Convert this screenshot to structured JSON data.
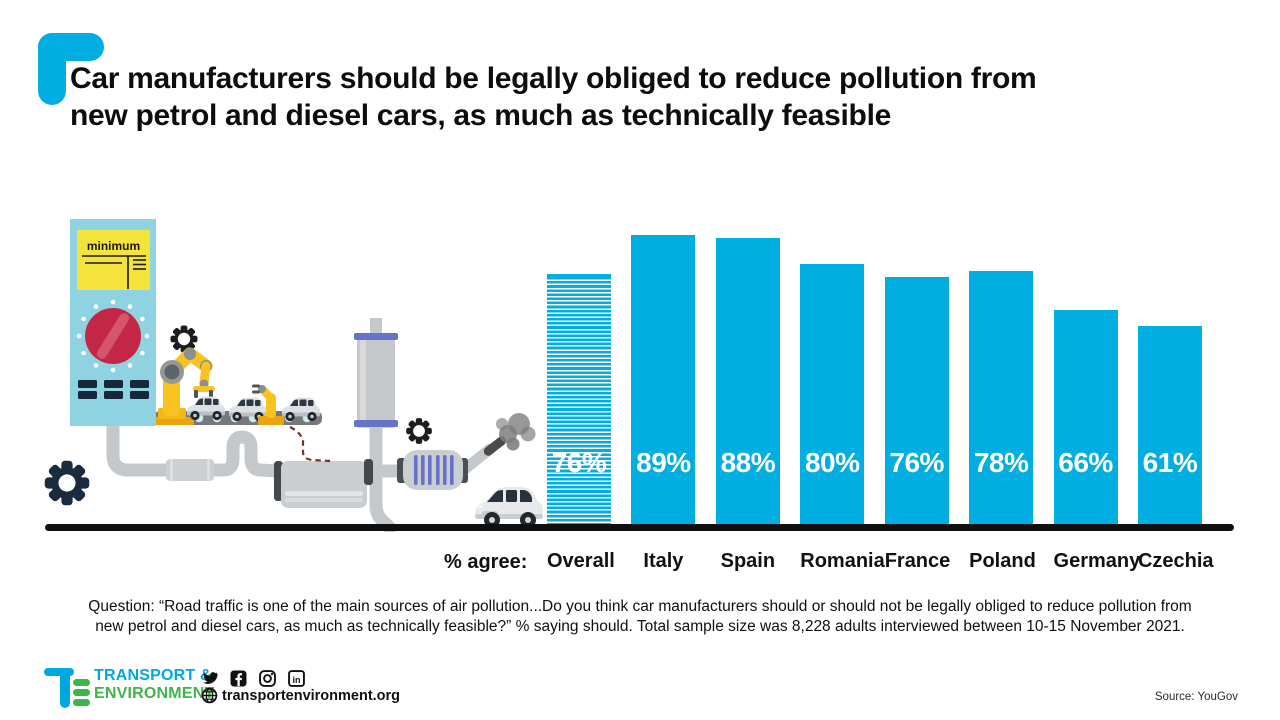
{
  "title": {
    "line1": "Car manufacturers should be legally obliged to reduce pollution from",
    "line2": "new petrol and diesel cars, as much as technically feasible"
  },
  "chart_data": {
    "type": "bar",
    "axis_label": "% agree:",
    "categories": [
      "Overall",
      "Italy",
      "Spain",
      "Romania",
      "France",
      "Poland",
      "Germany",
      "Czechia"
    ],
    "values": [
      76,
      89,
      88,
      80,
      76,
      78,
      66,
      61
    ],
    "value_suffix": "%",
    "ylim": [
      0,
      100
    ],
    "bar_color": "#00AEE2",
    "value_label_color": "#FFFFFF",
    "overall_bar_style": "striped",
    "legend": "none",
    "grid": "off"
  },
  "illustration": {
    "machine_label": "minimum"
  },
  "question": {
    "line1": "Question: “Road traffic is one of the main sources of air pollution...Do you think car manufacturers should or should not be legally obliged to reduce pollution from",
    "line2": "new petrol and diesel cars, as much as technically feasible?” % saying should. Total sample size was 8,228 adults interviewed between 10-15 November 2021."
  },
  "footer": {
    "logo_line1": "TRANSPORT &",
    "logo_line2": "ENVIRONMENT",
    "website": "transportenvironment.org",
    "source": "Source: YouGov"
  },
  "colors": {
    "accent_cyan": "#00AEE2",
    "logo_blue": "#00A7E1",
    "logo_green": "#3DB54A",
    "title_black": "#0D0D0D",
    "baseline_black": "#0F0F0F"
  }
}
